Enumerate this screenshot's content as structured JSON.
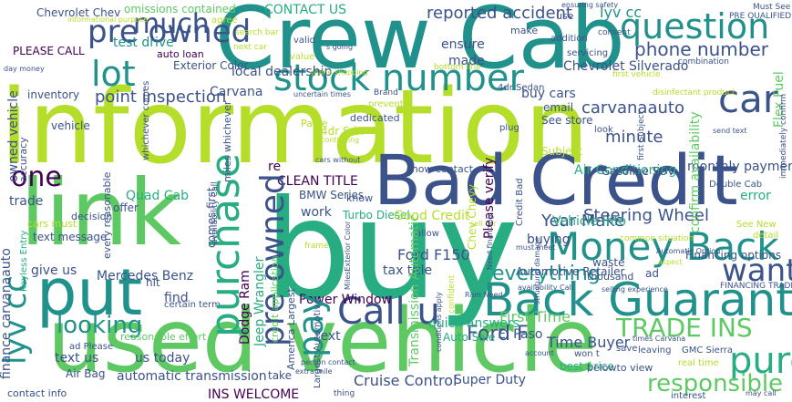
{
  "colors": {
    "background": "#ffffff",
    "palette": [
      "#440154",
      "#3b528b",
      "#21918c",
      "#27ad81",
      "#5ec962",
      "#b5de2b",
      "#fde725"
    ]
  },
  "words": [
    {
      "text": "information",
      "color": "#b5de2b"
    },
    {
      "text": "used vehicle",
      "color": "#5ec962"
    },
    {
      "text": "buy",
      "color": "#27ad81"
    },
    {
      "text": "Crew Cab",
      "color": "#21918c"
    },
    {
      "text": "link",
      "color": "#5ec962"
    },
    {
      "text": "Bad Credit",
      "color": "#3b528b"
    },
    {
      "text": "Back Guarantee",
      "color": "#21918c"
    },
    {
      "text": "put",
      "color": "#21918c"
    },
    {
      "text": "Money Back",
      "color": "#21918c"
    },
    {
      "text": "question",
      "color": "#21918c"
    },
    {
      "text": "stock number",
      "color": "#21918c"
    },
    {
      "text": "purchase",
      "color": "#27ad81"
    },
    {
      "text": "car",
      "color": "#3b528b"
    },
    {
      "text": "lot",
      "color": "#21918c"
    },
    {
      "text": "Call u",
      "color": "#3b528b"
    },
    {
      "text": "want",
      "color": "#3b528b"
    },
    {
      "text": "pre owned",
      "color": "#3b528b"
    },
    {
      "text": "much",
      "color": "#3b528b"
    },
    {
      "text": "one",
      "color": "#440154"
    },
    {
      "text": "looking",
      "color": "#21918c"
    },
    {
      "text": "TRADE INS",
      "color": "#5ec962"
    },
    {
      "text": "responsible",
      "color": "#5ec962"
    },
    {
      "text": "Wheel Drive",
      "color": "#440154"
    },
    {
      "text": "everything",
      "color": "#21918c"
    },
    {
      "text": "pay",
      "color": "#21918c"
    },
    {
      "text": "phone number",
      "color": "#3b528b"
    },
    {
      "text": "lyv cc",
      "color": "#21918c"
    },
    {
      "text": "point inspection",
      "color": "#3b528b"
    },
    {
      "text": "reported accident",
      "color": "#3b528b"
    },
    {
      "text": "Steering Wheel",
      "color": "#3b528b"
    },
    {
      "text": "test drive",
      "color": "#21918c"
    },
    {
      "text": "CONTACT US",
      "color": "#27ad81"
    },
    {
      "text": "Dodge Ram",
      "color": "#440154"
    },
    {
      "text": "Jeep Wrangler",
      "color": "#27ad81"
    },
    {
      "text": "Chevrolet Silverado",
      "color": "#3b528b"
    },
    {
      "text": "local dealership",
      "color": "#3b528b"
    },
    {
      "text": "carvanaauto",
      "color": "#3b528b"
    },
    {
      "text": "Carvana",
      "color": "#3b528b"
    },
    {
      "text": "minute",
      "color": "#3b528b"
    },
    {
      "text": "Year Make",
      "color": "#3b528b"
    },
    {
      "text": "Ford F",
      "color": "#3b528b"
    },
    {
      "text": "text",
      "color": "#3b528b"
    },
    {
      "text": "re",
      "color": "#440154"
    },
    {
      "text": "Power Window",
      "color": "#440154"
    },
    {
      "text": "Mercedes Benz",
      "color": "#3b528b"
    },
    {
      "text": "Cruise Control",
      "color": "#3b528b"
    },
    {
      "text": "Super Duty",
      "color": "#3b528b"
    },
    {
      "text": "INS WELCOME",
      "color": "#440154"
    },
    {
      "text": "automatic transmission",
      "color": "#3b528b"
    },
    {
      "text": "finance carvanaauto",
      "color": "#3b528b"
    },
    {
      "text": "owned vehicle",
      "color": "#3b528b"
    },
    {
      "text": "Transmission Automatic",
      "color": "#5ec962"
    },
    {
      "text": "confirm availability",
      "color": "#5ec962"
    },
    {
      "text": "monthly payment",
      "color": "#3b528b"
    },
    {
      "text": "Chevrolet Chev",
      "color": "#3b528b"
    },
    {
      "text": "Quad Cab",
      "color": "#27ad81"
    },
    {
      "text": "CLEAN TITLE",
      "color": "#440154"
    },
    {
      "text": "Flex Fuel",
      "color": "#5ec962"
    },
    {
      "text": "Time Buyer",
      "color": "#3b528b"
    },
    {
      "text": "First Time",
      "color": "#5ec962"
    },
    {
      "text": "best price",
      "color": "#27ad81"
    },
    {
      "text": "quick answers",
      "color": "#27ad81"
    },
    {
      "text": "give us",
      "color": "#3b528b"
    },
    {
      "text": "text us",
      "color": "#3b528b"
    },
    {
      "text": "us today",
      "color": "#3b528b"
    },
    {
      "text": "Air Bag",
      "color": "#3b528b"
    },
    {
      "text": "buying",
      "color": "#3b528b"
    },
    {
      "text": "Turbo Diesel",
      "color": "#27ad81"
    },
    {
      "text": "Vehicle Info",
      "color": "#27ad81"
    },
    {
      "text": "Air Conditioning",
      "color": "#27ad81"
    },
    {
      "text": "error",
      "color": "#27ad81"
    },
    {
      "text": "find",
      "color": "#3b528b"
    },
    {
      "text": "work",
      "color": "#3b528b"
    },
    {
      "text": "take",
      "color": "#3b528b"
    },
    {
      "text": "made",
      "color": "#3b528b"
    },
    {
      "text": "ensure",
      "color": "#3b528b"
    },
    {
      "text": "email",
      "color": "#3b528b"
    },
    {
      "text": "buy cars",
      "color": "#3b528b"
    },
    {
      "text": "See store",
      "color": "#3b528b"
    },
    {
      "text": "Chev Chevy",
      "color": "#b5de2b"
    },
    {
      "text": "Automotive Retailer",
      "color": "#3b528b"
    },
    {
      "text": "Financing options",
      "color": "#3b528b"
    },
    {
      "text": "Gasoline SUV",
      "color": "#3b528b"
    },
    {
      "text": "BMW Series",
      "color": "#3b528b"
    },
    {
      "text": "Good Credit",
      "color": "#b5de2b"
    },
    {
      "text": "Please verify",
      "color": "#440154"
    },
    {
      "text": "El Paso",
      "color": "#3b528b"
    },
    {
      "text": "Auto Sale",
      "color": "#27ad81"
    },
    {
      "text": "Ford F150",
      "color": "#3b528b"
    },
    {
      "text": "tax title",
      "color": "#3b528b"
    },
    {
      "text": "ad",
      "color": "#3b528b"
    },
    {
      "text": "waste",
      "color": "#3b528b"
    },
    {
      "text": "thousand",
      "color": "#3b528b"
    },
    {
      "text": "trade",
      "color": "#3b528b"
    },
    {
      "text": "text message",
      "color": "#3b528b"
    },
    {
      "text": "vehicle",
      "color": "#3b528b"
    },
    {
      "text": "hit",
      "color": "#3b528b"
    },
    {
      "text": "offer",
      "color": "#3b528b"
    },
    {
      "text": "inventory",
      "color": "#3b528b"
    },
    {
      "text": "auto loan",
      "color": "#440154"
    },
    {
      "text": "Exterior Color",
      "color": "#3b528b"
    },
    {
      "text": "PLEASE CALL",
      "color": "#440154"
    },
    {
      "text": "accuracy",
      "color": "#3b528b"
    },
    {
      "text": "omissions contained",
      "color": "#5ec962"
    },
    {
      "text": "whichever comes",
      "color": "#3b528b"
    },
    {
      "text": "miles whichever",
      "color": "#3b528b"
    },
    {
      "text": "comes first",
      "color": "#3b528b"
    },
    {
      "text": "every reasonable",
      "color": "#3b528b"
    },
    {
      "text": "credit application",
      "color": "#5ec962"
    },
    {
      "text": "America Largest",
      "color": "#3b528b"
    },
    {
      "text": "Largest Automotive",
      "color": "#3b528b"
    },
    {
      "text": "Keyless Entry",
      "color": "#27ad81"
    },
    {
      "text": "Speed Automatic",
      "color": "#5ec962"
    },
    {
      "text": "Manufacturer incentive",
      "color": "#5ec962"
    },
    {
      "text": "cars must",
      "color": "#b5de2b"
    },
    {
      "text": "decision",
      "color": "#3b528b"
    },
    {
      "text": "certain term",
      "color": "#3b528b"
    },
    {
      "text": "ad Please",
      "color": "#3b528b"
    },
    {
      "text": "reasonable effort",
      "color": "#5ec962"
    },
    {
      "text": "contact info",
      "color": "#3b528b"
    },
    {
      "text": "dedicated",
      "color": "#3b528b"
    },
    {
      "text": "4dr Sdn",
      "color": "#b5de2b"
    },
    {
      "text": "4dr Sedan",
      "color": "#3b528b"
    },
    {
      "text": "Paste",
      "color": "#b5de2b"
    },
    {
      "text": "show contact",
      "color": "#3b528b"
    },
    {
      "text": "know",
      "color": "#3b528b"
    },
    {
      "text": "Subject",
      "color": "#b5de2b"
    },
    {
      "text": "leaving",
      "color": "#3b528b"
    },
    {
      "text": "save",
      "color": "#3b528b"
    },
    {
      "text": "interest",
      "color": "#3b528b"
    },
    {
      "text": "belowto view",
      "color": "#3b528b"
    },
    {
      "text": "won t",
      "color": "#3b528b"
    },
    {
      "text": "GMC Sierra",
      "color": "#3b528b"
    },
    {
      "text": "FINANCING TRADE",
      "color": "#3b528b"
    },
    {
      "text": "Double Cab",
      "color": "#3b528b"
    },
    {
      "text": "detail",
      "color": "#b5de2b"
    },
    {
      "text": "See New",
      "color": "#b5de2b"
    },
    {
      "text": "addition",
      "color": "#3b528b"
    },
    {
      "text": "make",
      "color": "#3b528b"
    },
    {
      "text": "use",
      "color": "#3b528b"
    },
    {
      "text": "valid",
      "color": "#3b528b"
    },
    {
      "text": "prevent",
      "color": "#b5de2b"
    },
    {
      "text": "value",
      "color": "#b5de2b"
    },
    {
      "text": "next car",
      "color": "#b5de2b"
    },
    {
      "text": "search bar",
      "color": "#b5de2b"
    },
    {
      "text": "agree",
      "color": "#b5de2b"
    },
    {
      "text": "servicing",
      "color": "#3b528b"
    },
    {
      "text": "plug",
      "color": "#3b528b"
    },
    {
      "text": "look",
      "color": "#3b528b"
    },
    {
      "text": "Must See",
      "color": "#3b528b"
    },
    {
      "text": "PRE QUALIFIED",
      "color": "#3b528b"
    },
    {
      "text": "bottom line",
      "color": "#b5de2b"
    },
    {
      "text": "first vehicle",
      "color": "#b5de2b"
    },
    {
      "text": "disinfectant product",
      "color": "#b5de2b"
    },
    {
      "text": "immediately confirm",
      "color": "#3b528b"
    },
    {
      "text": "combination",
      "color": "#3b528b"
    },
    {
      "text": "consent",
      "color": "#3b528b"
    },
    {
      "text": "ensuring safety",
      "color": "#3b528b"
    },
    {
      "text": "send text",
      "color": "#3b528b"
    },
    {
      "text": "real time",
      "color": "#b5de2b"
    },
    {
      "text": "may call",
      "color": "#3b528b"
    },
    {
      "text": "common situation",
      "color": "#b5de2b"
    },
    {
      "text": "selling experience",
      "color": "#3b528b"
    },
    {
      "text": "times Carvana",
      "color": "#3b528b"
    },
    {
      "text": "uncertain times",
      "color": "#3b528b"
    },
    {
      "text": "online shopping",
      "color": "#b5de2b"
    },
    {
      "text": "day money",
      "color": "#3b528b"
    },
    {
      "text": "informational purpose",
      "color": "#b5de2b"
    },
    {
      "text": "thing",
      "color": "#3b528b"
    },
    {
      "text": "frame",
      "color": "#b5de2b"
    },
    {
      "text": "allow",
      "color": "#3b528b"
    },
    {
      "text": "sell car",
      "color": "#b5de2b"
    },
    {
      "text": "must meet",
      "color": "#3b528b"
    },
    {
      "text": "person contact",
      "color": "#3b528b"
    },
    {
      "text": "extra mile",
      "color": "#3b528b"
    },
    {
      "text": "conditions apply",
      "color": "#3b528b"
    },
    {
      "text": "structural damage",
      "color": "#3b528b"
    },
    {
      "text": "cars without",
      "color": "#3b528b"
    },
    {
      "text": "continuing",
      "color": "#b5de2b"
    },
    {
      "text": "Need financing",
      "color": "#3b528b"
    },
    {
      "text": "Credit Bad",
      "color": "#3b528b"
    },
    {
      "text": "MilesExterior Color",
      "color": "#3b528b"
    },
    {
      "text": "first Subject",
      "color": "#3b528b"
    },
    {
      "text": "availability Call",
      "color": "#3b528b"
    },
    {
      "text": "Automatic Option",
      "color": "#3b528b"
    },
    {
      "text": "aspect",
      "color": "#b5de2b"
    },
    {
      "text": "s going",
      "color": "#3b528b"
    },
    {
      "text": "Ram Need",
      "color": "#3b528b"
    },
    {
      "text": "Brand",
      "color": "#3b528b"
    },
    {
      "text": "confident",
      "color": "#b5de2b"
    },
    {
      "text": "account",
      "color": "#3b528b"
    },
    {
      "text": "See everything",
      "color": "#3b528b"
    }
  ]
}
